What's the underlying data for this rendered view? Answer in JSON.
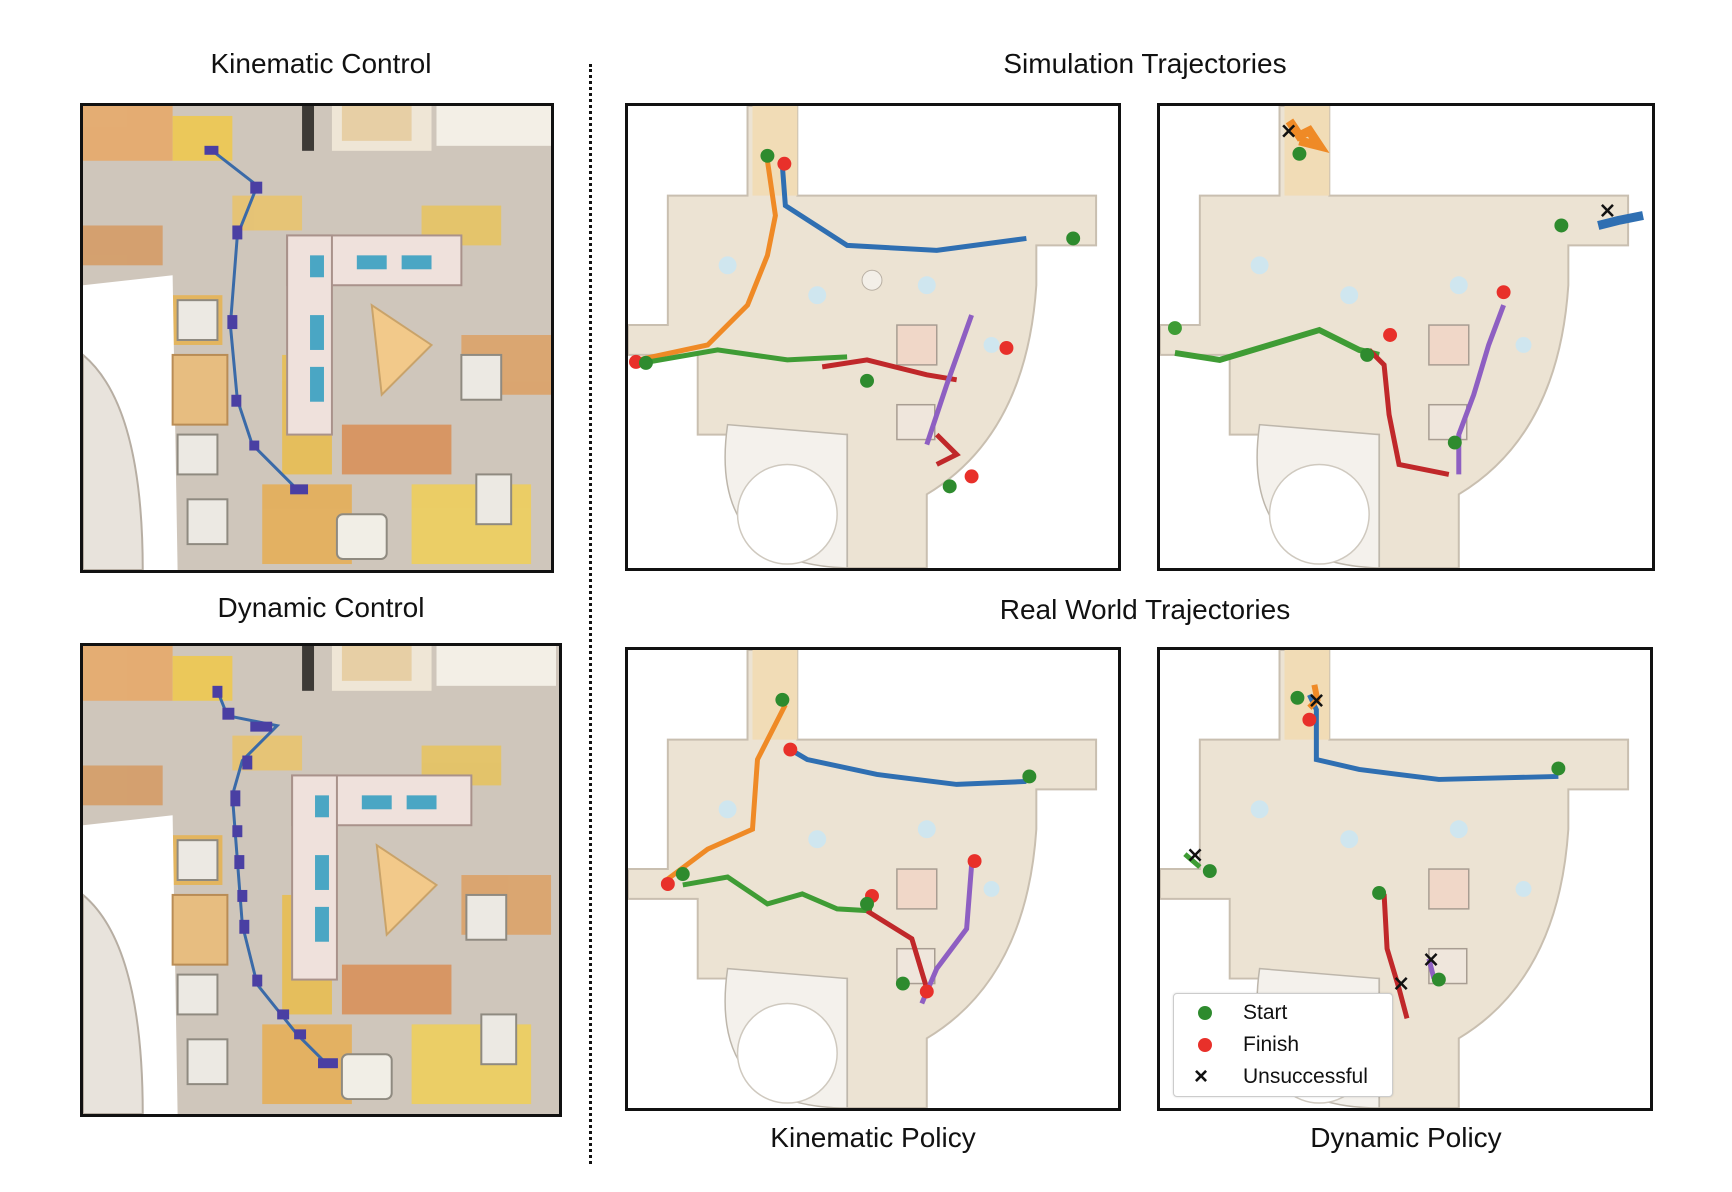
{
  "titles": {
    "kinematic_control": "Kinematic Control",
    "dynamic_control": "Dynamic Control",
    "simulation": "Simulation Trajectories",
    "real_world": "Real World Trajectories",
    "kinematic_policy": "Kinematic Policy",
    "dynamic_policy": "Dynamic Policy"
  },
  "legend": {
    "start": "Start",
    "finish": "Finish",
    "unsuccessful": "Unsuccessful"
  },
  "colors": {
    "start": "#2e8b2e",
    "finish": "#e8302a",
    "trajectory_blue": "#2f6fb2",
    "trajectory_orange": "#ef8a26",
    "trajectory_green": "#3f9c35",
    "trajectory_red": "#c0282a",
    "trajectory_purple": "#8e5fc2",
    "robot_path": "#3a6aa8",
    "robot_marker": "#4a3fa3"
  }
}
